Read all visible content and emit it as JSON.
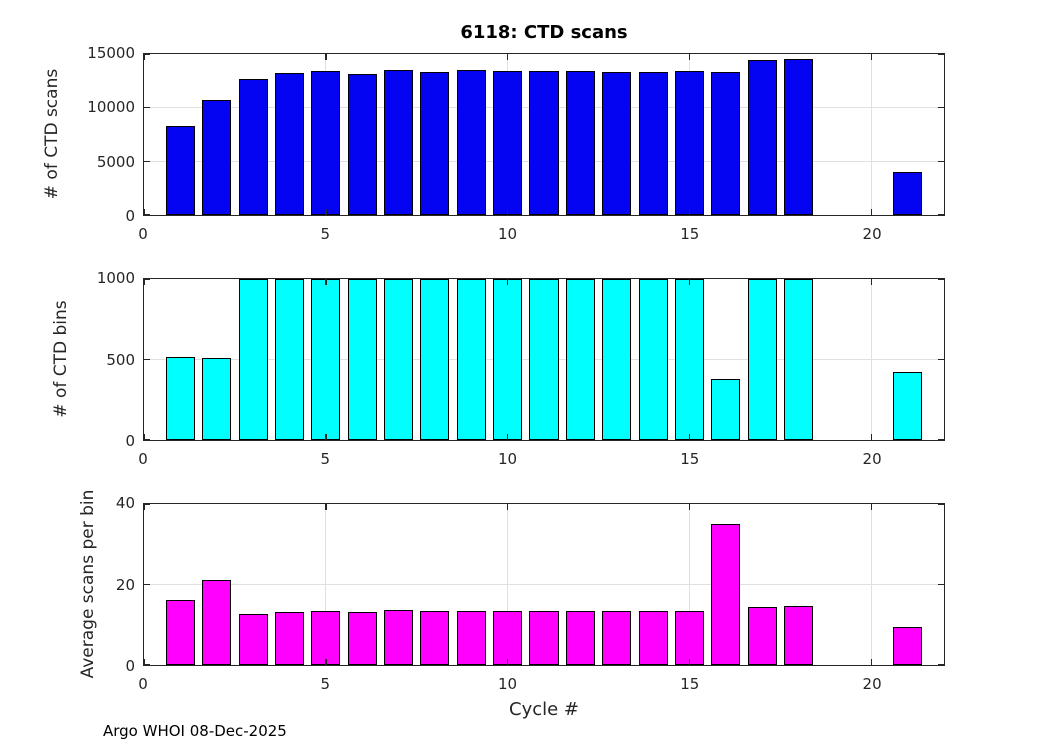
{
  "figure": {
    "title": "6118: CTD scans",
    "xlabel": "Cycle #",
    "footer": "Argo WHOI 08-Dec-2025"
  },
  "colors": {
    "scans_bar": "#0404f2",
    "bins_bar": "#00ffff",
    "avg_bar": "#ff00ff",
    "bar_edge": "#000000",
    "grid": "#e0e0e0",
    "axis": "#262626"
  },
  "axes": {
    "xlim": [
      0,
      22
    ],
    "xticks": [
      0,
      5,
      10,
      15,
      20
    ],
    "bar_width": 0.8,
    "grid": true,
    "box": true
  },
  "chart_data": [
    {
      "type": "bar",
      "title": "6118: CTD scans",
      "ylabel": "# of CTD scans",
      "ylim": [
        0,
        15000
      ],
      "yticks": [
        0,
        5000,
        10000,
        15000
      ],
      "series_name": "ctd-scans",
      "x": [
        1,
        2,
        3,
        4,
        5,
        6,
        7,
        8,
        9,
        10,
        11,
        12,
        13,
        14,
        15,
        16,
        17,
        18,
        21
      ],
      "values": [
        8300,
        10750,
        12650,
        13200,
        13400,
        13100,
        13550,
        13350,
        13500,
        13400,
        13450,
        13400,
        13350,
        13350,
        13450,
        13300,
        14450,
        14550,
        4000
      ]
    },
    {
      "type": "bar",
      "ylabel": "# of CTD bins",
      "ylim": [
        0,
        1000
      ],
      "yticks": [
        0,
        500,
        1000
      ],
      "series_name": "ctd-bins",
      "x": [
        1,
        2,
        3,
        4,
        5,
        6,
        7,
        8,
        9,
        10,
        11,
        12,
        13,
        14,
        15,
        16,
        17,
        18,
        21
      ],
      "values": [
        513,
        507,
        1000,
        1000,
        1000,
        1000,
        1000,
        1000,
        1000,
        1000,
        1000,
        1000,
        1000,
        1000,
        1000,
        380,
        1000,
        1000,
        425
      ]
    },
    {
      "type": "bar",
      "ylabel": "Average scans per bin",
      "xlabel": "Cycle #",
      "ylim": [
        0,
        40
      ],
      "yticks": [
        0,
        20,
        40
      ],
      "series_name": "avg-scans-per-bin",
      "x": [
        1,
        2,
        3,
        4,
        5,
        6,
        7,
        8,
        9,
        10,
        11,
        12,
        13,
        14,
        15,
        16,
        17,
        18,
        21
      ],
      "values": [
        16.2,
        21.2,
        12.7,
        13.2,
        13.4,
        13.1,
        13.6,
        13.4,
        13.5,
        13.4,
        13.5,
        13.4,
        13.4,
        13.4,
        13.5,
        35,
        14.5,
        14.6,
        9.4
      ]
    }
  ]
}
